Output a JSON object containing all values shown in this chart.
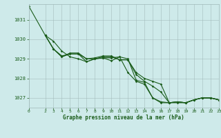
{
  "bg_color": "#ceeaea",
  "grid_color": "#a0b8b8",
  "line_color": "#1a5c1a",
  "title": "Graphe pression niveau de la mer (hPa)",
  "xlim": [
    0,
    23
  ],
  "ylim": [
    1026.5,
    1031.8
  ],
  "yticks": [
    1027,
    1028,
    1029,
    1030,
    1031
  ],
  "xticks": [
    0,
    2,
    3,
    4,
    5,
    6,
    7,
    8,
    9,
    10,
    11,
    12,
    13,
    14,
    15,
    16,
    17,
    18,
    19,
    20,
    21,
    22,
    23
  ],
  "series": [
    {
      "x": [
        0,
        2,
        3,
        4,
        5,
        6,
        7,
        8,
        9,
        10,
        11,
        12,
        13,
        14,
        15,
        16,
        17,
        18,
        19,
        20,
        21,
        22,
        23
      ],
      "y": [
        1031.7,
        1030.2,
        1029.9,
        1029.4,
        1029.1,
        1029.0,
        1028.85,
        1029.0,
        1029.05,
        1028.9,
        1029.1,
        1029.0,
        1027.9,
        1027.8,
        1027.0,
        1026.8,
        1026.75,
        1026.8,
        1026.75,
        1026.9,
        1027.0,
        1027.0,
        1026.9
      ]
    },
    {
      "x": [
        2,
        3,
        4,
        5,
        6,
        7,
        8,
        9,
        10,
        11,
        12,
        13,
        14,
        15,
        16,
        17,
        18,
        19,
        20,
        21,
        22,
        23
      ],
      "y": [
        1030.2,
        1029.5,
        1029.1,
        1029.25,
        1029.25,
        1029.0,
        1029.0,
        1029.05,
        1029.05,
        1029.1,
        1028.3,
        1027.85,
        1027.7,
        1027.0,
        1026.75,
        1026.75,
        1026.8,
        1026.75,
        1026.9,
        1027.0,
        1027.0,
        1026.9
      ]
    },
    {
      "x": [
        2,
        3,
        4,
        5,
        6,
        7,
        8,
        9,
        10,
        11,
        12,
        13,
        14,
        15,
        16,
        17,
        18,
        19,
        20,
        21,
        22,
        23
      ],
      "y": [
        1030.2,
        1029.5,
        1029.15,
        1029.25,
        1029.25,
        1028.85,
        1029.0,
        1029.1,
        1029.1,
        1028.95,
        1028.95,
        1028.2,
        1027.85,
        1027.6,
        1027.3,
        1026.75,
        1026.75,
        1026.75,
        1026.9,
        1027.0,
        1027.0,
        1026.9
      ]
    },
    {
      "x": [
        2,
        3,
        4,
        5,
        6,
        7,
        8,
        9,
        10,
        11,
        12,
        13,
        14,
        15,
        16,
        17,
        18,
        19,
        20,
        21,
        22,
        23
      ],
      "y": [
        1030.2,
        1029.5,
        1029.1,
        1029.3,
        1029.3,
        1029.0,
        1029.05,
        1029.15,
        1029.15,
        1028.95,
        1028.95,
        1028.3,
        1028.0,
        1027.85,
        1027.7,
        1026.75,
        1026.8,
        1026.75,
        1026.9,
        1027.0,
        1027.0,
        1026.9
      ]
    }
  ]
}
